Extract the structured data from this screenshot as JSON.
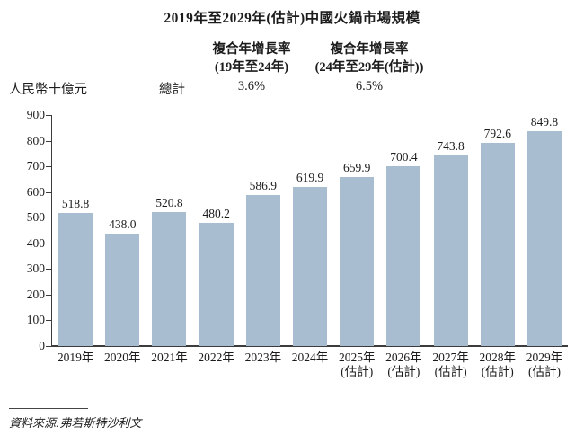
{
  "title": "2019年至2029年(估計)中國火鍋市場規模",
  "header": {
    "unit_label": "人民幣十億元",
    "total_label": "總計",
    "cagr1": {
      "line1": "複合年增長率",
      "line2": "(19年至24年)",
      "value": "3.6%"
    },
    "cagr2": {
      "line1": "複合年增長率",
      "line2": "(24年至29年(估計))",
      "value": "6.5%"
    }
  },
  "chart_data": {
    "type": "bar",
    "title": "2019年至2029年(估計)中國火鍋市場規模",
    "ylabel": "人民幣十億元",
    "categories": [
      "2019年",
      "2020年",
      "2021年",
      "2022年",
      "2023年",
      "2024年",
      "2025年",
      "2026年",
      "2027年",
      "2028年",
      "2029年"
    ],
    "category_notes": [
      "",
      "",
      "",
      "",
      "",
      "",
      "(估計)",
      "(估計)",
      "(估計)",
      "(估計)",
      "(估計)"
    ],
    "values": [
      518.8,
      438.0,
      520.8,
      480.2,
      586.9,
      619.9,
      659.9,
      700.4,
      743.8,
      792.6,
      849.8
    ],
    "value_decimals": 1,
    "ylim": [
      0,
      900
    ],
    "ytick_step": 100,
    "grid": false,
    "legend": null,
    "bar_color": "#a9bdd1"
  },
  "source": "資料來源:弗若斯特沙利文",
  "colors": {
    "bar": "#a9bdd1",
    "axis": "#3c3c3c",
    "text": "#1c1c1c"
  }
}
